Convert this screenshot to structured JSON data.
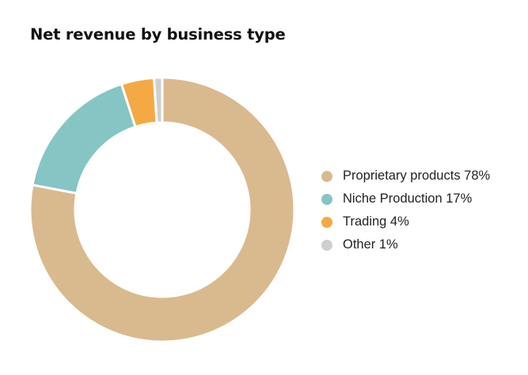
{
  "title": "Net revenue by business type",
  "legend": [
    {
      "label": "Proprietary products 78%",
      "color": "#D9BA8F"
    },
    {
      "label": "Niche Production 17%",
      "color": "#85C5C3"
    },
    {
      "label": "Trading 4%",
      "color": "#F5A944"
    },
    {
      "label": "Other 1%",
      "color": "#CFCFCF"
    }
  ],
  "chart_data": {
    "type": "pie",
    "variant": "donut",
    "title": "Net revenue by business type",
    "categories": [
      "Proprietary products",
      "Niche Production",
      "Trading",
      "Other"
    ],
    "values": [
      78,
      17,
      4,
      1
    ],
    "unit": "%",
    "colors": [
      "#D9BA8F",
      "#85C5C3",
      "#F5A944",
      "#CFCFCF"
    ],
    "start_angle": "12 o'clock",
    "direction": "clockwise",
    "legend_position": "right"
  }
}
